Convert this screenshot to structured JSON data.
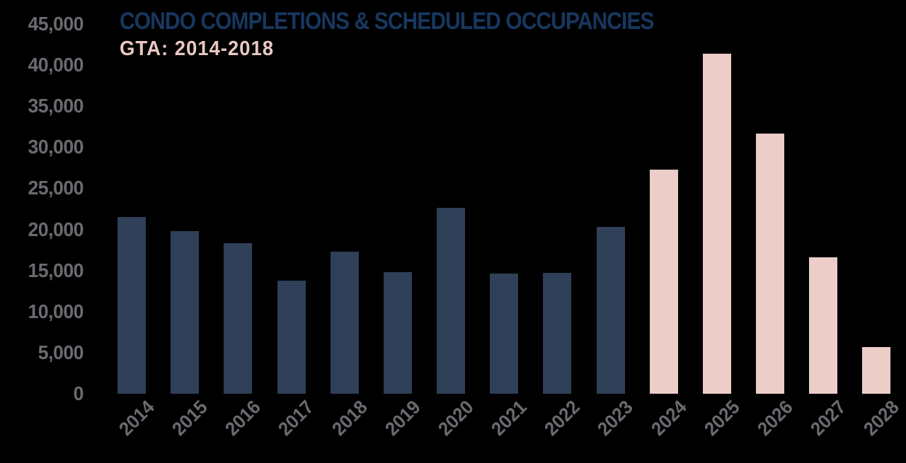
{
  "header": {
    "title": "CONDO COMPLETIONS & SCHEDULED OCCUPANCIES",
    "subtitle": "GTA: 2014-2018"
  },
  "colors": {
    "background": "#000000",
    "title": "#17375F",
    "subtitle": "#E9C7C2",
    "axis_text": "#696B70",
    "completions_bar": "#2F4058",
    "scheduled_bar": "#ECCDC8"
  },
  "chart_data": {
    "type": "bar",
    "title": "CONDO COMPLETIONS & SCHEDULED OCCUPANCIES",
    "subtitle": "GTA: 2014-2018",
    "categories": [
      "2014",
      "2015",
      "2016",
      "2017",
      "2018",
      "2019",
      "2020",
      "2021",
      "2022",
      "2023",
      "2024",
      "2025",
      "2026",
      "2027",
      "2028"
    ],
    "values": [
      21500,
      19800,
      18300,
      13800,
      17300,
      14800,
      22600,
      14600,
      14700,
      20300,
      27300,
      41400,
      31700,
      16600,
      5700
    ],
    "bar_groups": [
      "completions",
      "completions",
      "completions",
      "completions",
      "completions",
      "completions",
      "completions",
      "completions",
      "completions",
      "completions",
      "scheduled",
      "scheduled",
      "scheduled",
      "scheduled",
      "scheduled"
    ],
    "group_colors": {
      "completions": "#2F4058",
      "scheduled": "#ECCDC8"
    },
    "xlabel": "",
    "ylabel": "",
    "ylim": [
      0,
      45000
    ],
    "y_tick_labels": [
      "45,000",
      "40,000",
      "35,000",
      "30,000",
      "25,000",
      "20,000",
      "15,000",
      "10,000",
      "5,000",
      "0"
    ],
    "grid": false,
    "legend_position": "none",
    "x_tick_rotation_deg": -45
  }
}
